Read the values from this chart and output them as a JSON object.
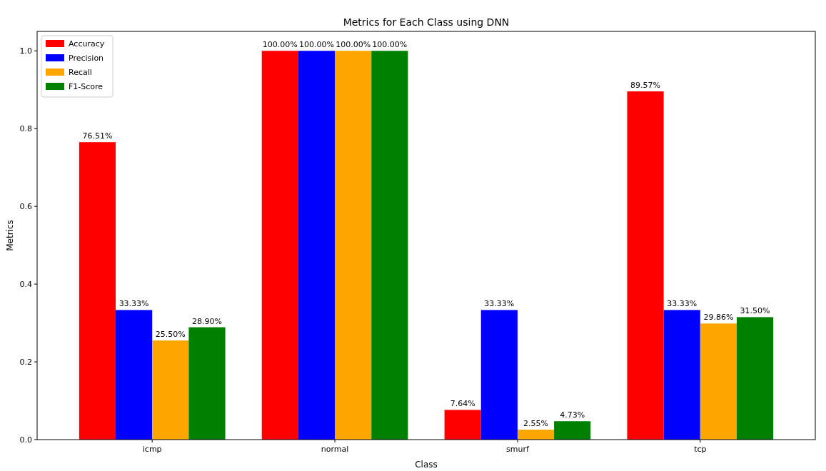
{
  "chart_data": {
    "type": "bar",
    "title": "Metrics for Each Class using DNN",
    "xlabel": "Class",
    "ylabel": "Metrics",
    "categories": [
      "icmp",
      "normal",
      "smurf",
      "tcp"
    ],
    "series": [
      {
        "name": "Accuracy",
        "color": "#ff0000",
        "values": [
          0.7651,
          1.0,
          0.0764,
          0.8957
        ],
        "value_labels": [
          "76.51%",
          "100.00%",
          "7.64%",
          "89.57%"
        ]
      },
      {
        "name": "Precision",
        "color": "#0000ff",
        "values": [
          0.3333,
          1.0,
          0.3333,
          0.3333
        ],
        "value_labels": [
          "33.33%",
          "100.00%",
          "33.33%",
          "33.33%"
        ]
      },
      {
        "name": "Recall",
        "color": "#ffa500",
        "values": [
          0.255,
          1.0,
          0.0255,
          0.2986
        ],
        "value_labels": [
          "25.50%",
          "100.00%",
          "2.55%",
          "29.86%"
        ]
      },
      {
        "name": "F1-Score",
        "color": "#008000",
        "values": [
          0.289,
          1.0,
          0.0473,
          0.315
        ],
        "value_labels": [
          "28.90%",
          "100.00%",
          "4.73%",
          "31.50%"
        ]
      }
    ],
    "ylim": [
      0,
      1.05
    ],
    "yticks": [
      {
        "value": 0,
        "label": "0.0"
      },
      {
        "value": 0.2,
        "label": "0.2"
      },
      {
        "value": 0.4,
        "label": "0.4"
      },
      {
        "value": 0.6,
        "label": "0.6"
      },
      {
        "value": 0.8,
        "label": "0.8"
      },
      {
        "value": 1.0,
        "label": "1.0"
      }
    ],
    "grid": false,
    "legend": "top left"
  }
}
